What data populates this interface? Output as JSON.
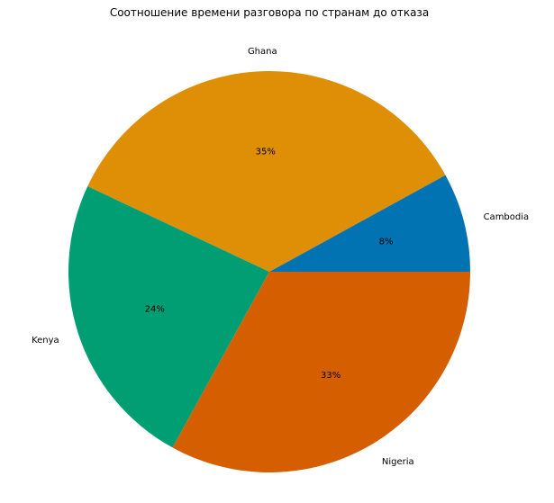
{
  "chart_data": {
    "type": "pie",
    "title": "Соотношение времени разговора по странам до отказа",
    "slices": [
      {
        "label": "Cambodia",
        "value": 8,
        "pct_label": "8%",
        "color": "#0173b2"
      },
      {
        "label": "Ghana",
        "value": 35,
        "pct_label": "35%",
        "color": "#de8f05"
      },
      {
        "label": "Kenya",
        "value": 24,
        "pct_label": "24%",
        "color": "#029e73"
      },
      {
        "label": "Nigeria",
        "value": 33,
        "pct_label": "33%",
        "color": "#d55e00"
      }
    ],
    "start_angle_deg": 0,
    "direction": "counterclockwise",
    "legend": "none"
  }
}
